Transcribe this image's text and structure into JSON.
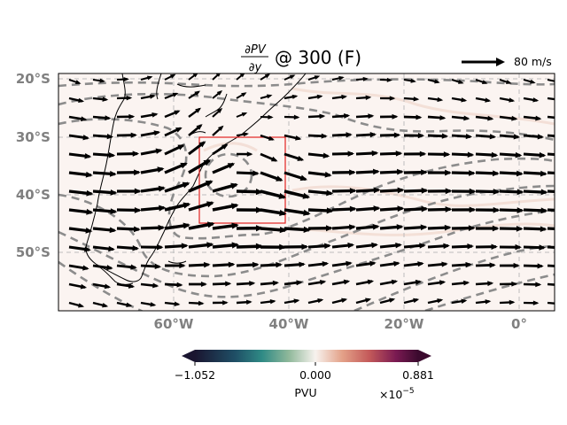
{
  "title": {
    "numerator": "∂PV",
    "denominator": "∂y",
    "suffix": "@ 300 (F)"
  },
  "quiver_key": {
    "label": "80 m/s"
  },
  "axes": {
    "lat_ticks": [
      "20°S",
      "30°S",
      "40°S",
      "50°S"
    ],
    "lon_ticks": [
      "60°W",
      "40°W",
      "20°W",
      "0°"
    ]
  },
  "colorbar": {
    "min_label": "−1.052",
    "mid_label": "0.000",
    "max_label": "0.881",
    "unit": "PVU",
    "exponent": "×10",
    "exponent_power": "−5",
    "colors": [
      "#1a1530",
      "#1f4f66",
      "#2f8a85",
      "#8fb89a",
      "#f7f2ee",
      "#e3a188",
      "#c45a5a",
      "#7a1a52",
      "#3b0a2e"
    ]
  },
  "box": {
    "color": "#e32222"
  },
  "chart_data": {
    "type": "map-quiver",
    "title": "∂PV/∂y @ 300 (F)",
    "variable_units": "PVU ×10^-5",
    "extent": {
      "lon": [
        -80,
        6
      ],
      "lat": [
        -61,
        -19
      ]
    },
    "colorbar_range": [
      -1.052,
      0.881
    ],
    "highlight_box": {
      "lon": [
        -55,
        -40
      ],
      "lat": [
        -45,
        -30
      ]
    },
    "quiver_reference": {
      "magnitude": 80,
      "units": "m/s"
    }
  }
}
